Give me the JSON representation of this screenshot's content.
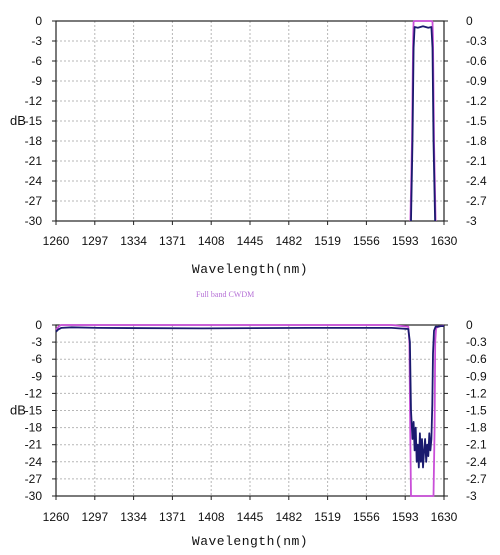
{
  "colors": {
    "navy": "#1a1a6e",
    "magenta": "#c94fd8",
    "grid": "#b7b7b7",
    "frame": "#222222"
  },
  "legend_text": "Full band    CWDM",
  "chart_data": [
    {
      "type": "line",
      "xlabel": "Wavelength(nm)",
      "ylabel": "dB",
      "xlim": [
        1260,
        1630
      ],
      "ylim": [
        -30,
        0
      ],
      "y2lim": [
        -3,
        0
      ],
      "xticks": [
        1260,
        1297,
        1334,
        1371,
        1408,
        1445,
        1482,
        1519,
        1556,
        1593,
        1630
      ],
      "yticks": [
        0,
        -3,
        -6,
        -9,
        -12,
        -15,
        -18,
        -21,
        -24,
        -27,
        -30
      ],
      "y2ticks": [
        0,
        -0.3,
        -0.6,
        -0.9,
        -1.2,
        -1.5,
        -1.8,
        -2.1,
        -2.4,
        -2.7,
        -3
      ],
      "grid": true,
      "series": [
        {
          "color": "#c94fd8",
          "x": [
            1598,
            1599.5,
            1600.5,
            1601,
            1602,
            1618,
            1619,
            1619.5,
            1620.5,
            1622
          ],
          "y": [
            -30,
            -18,
            -3,
            -0.1,
            0,
            0,
            -0.1,
            -3,
            -18,
            -30
          ]
        },
        {
          "color": "#1a1a6e",
          "x": [
            1598.5,
            1600,
            1601,
            1602,
            1605,
            1610,
            1615,
            1618,
            1619,
            1620,
            1621.5
          ],
          "y": [
            -30,
            -18,
            -4,
            -0.9,
            -1,
            -0.8,
            -1,
            -0.9,
            -4,
            -18,
            -30
          ]
        }
      ]
    },
    {
      "type": "line",
      "xlabel": "Wavelength(nm)",
      "ylabel": "dB",
      "xlim": [
        1260,
        1630
      ],
      "ylim": [
        -30,
        0
      ],
      "y2lim": [
        -3,
        0
      ],
      "xticks": [
        1260,
        1297,
        1334,
        1371,
        1408,
        1445,
        1482,
        1519,
        1556,
        1593,
        1630
      ],
      "yticks": [
        0,
        -3,
        -6,
        -9,
        -12,
        -15,
        -18,
        -21,
        -24,
        -27,
        -30
      ],
      "y2ticks": [
        0,
        -0.3,
        -0.6,
        -0.9,
        -1.2,
        -1.5,
        -1.8,
        -2.1,
        -2.4,
        -2.7,
        -3
      ],
      "grid": true,
      "series": [
        {
          "color": "#c94fd8",
          "x": [
            1260,
            1263,
            1265,
            1300,
            1400,
            1500,
            1580,
            1596,
            1597,
            1597.8,
            1598.5,
            1620,
            1621,
            1621.6,
            1622.5,
            1626,
            1630
          ],
          "y": [
            -0.8,
            -0.2,
            0,
            0,
            0,
            0,
            0,
            -0.3,
            -3,
            -18,
            -30,
            -30,
            -18,
            -3,
            -0.5,
            -0.2,
            -0.1
          ]
        },
        {
          "color": "#1a1a6e",
          "x": [
            1260,
            1262,
            1265,
            1275,
            1300,
            1400,
            1500,
            1580,
            1596,
            1597.5,
            1598.5,
            1600,
            1601,
            1602,
            1603,
            1604,
            1605,
            1606,
            1607,
            1608,
            1609,
            1610,
            1611,
            1612,
            1613,
            1614,
            1615,
            1616,
            1617,
            1618,
            1618.8,
            1619.5,
            1620.5,
            1622,
            1624,
            1627,
            1630
          ],
          "y": [
            -1.2,
            -0.8,
            -0.5,
            -0.4,
            -0.5,
            -0.6,
            -0.5,
            -0.5,
            -0.7,
            -3,
            -15,
            -20,
            -17,
            -22,
            -18,
            -24,
            -21,
            -25,
            -19,
            -24,
            -20,
            -25,
            -22,
            -20,
            -24,
            -21,
            -23,
            -19,
            -22,
            -20,
            -14,
            -5,
            -1,
            -0.3,
            -0.3,
            -0.2,
            -0.2
          ]
        }
      ]
    }
  ]
}
